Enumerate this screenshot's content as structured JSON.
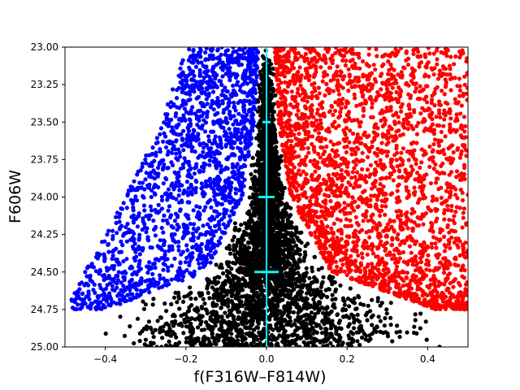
{
  "chart_data": {
    "type": "scatter",
    "title": "",
    "xlabel": "f(F316W–F814W)",
    "ylabel": "F606W",
    "xlim": [
      -0.5,
      0.5
    ],
    "ylim": [
      25.0,
      23.0
    ],
    "y_inverted": true,
    "grid": false,
    "xticks": [
      -0.4,
      -0.2,
      0.0,
      0.2,
      0.4
    ],
    "xtick_labels": [
      "−0.4",
      "−0.2",
      "0.0",
      "0.2",
      "0.4"
    ],
    "yticks": [
      23.0,
      23.25,
      23.5,
      23.75,
      24.0,
      24.25,
      24.5,
      24.75,
      25.0
    ],
    "ytick_labels": [
      "23.00",
      "23.25",
      "23.50",
      "23.75",
      "24.00",
      "24.25",
      "24.50",
      "24.75",
      "25.00"
    ],
    "series": [
      {
        "color": "#000000",
        "description_points": "central sequence, widening toward faint magnitudes",
        "envelope": [
          [
            23.0,
            -0.02,
            0.02
          ],
          [
            23.5,
            -0.03,
            0.03
          ],
          [
            24.0,
            -0.05,
            0.06
          ],
          [
            24.5,
            -0.15,
            0.16
          ],
          [
            24.75,
            -0.42,
            0.42
          ],
          [
            25.0,
            -0.5,
            0.5
          ]
        ]
      },
      {
        "color": "#0000ff",
        "envelope": [
          [
            23.0,
            -0.2,
            -0.02
          ],
          [
            23.5,
            -0.26,
            -0.03
          ],
          [
            24.0,
            -0.35,
            -0.06
          ],
          [
            24.5,
            -0.45,
            -0.15
          ],
          [
            24.75,
            -0.5,
            -0.4
          ]
        ]
      },
      {
        "color": "#ff0000",
        "envelope": [
          [
            23.0,
            0.02,
            0.5
          ],
          [
            23.5,
            0.03,
            0.5
          ],
          [
            24.0,
            0.06,
            0.5
          ],
          [
            24.5,
            0.16,
            0.5
          ],
          [
            24.75,
            0.42,
            0.5
          ]
        ]
      }
    ],
    "reference_line": {
      "x": 0.0,
      "color": "#00ffff"
    },
    "error_bars": [
      {
        "y": 23.5,
        "xerr": 0.01
      },
      {
        "y": 24.0,
        "xerr": 0.02
      },
      {
        "y": 24.5,
        "xerr": 0.03
      }
    ],
    "colors": {
      "black": "#000000",
      "blue": "#0000ff",
      "red": "#ff0000",
      "cyan": "#00ffff"
    }
  }
}
